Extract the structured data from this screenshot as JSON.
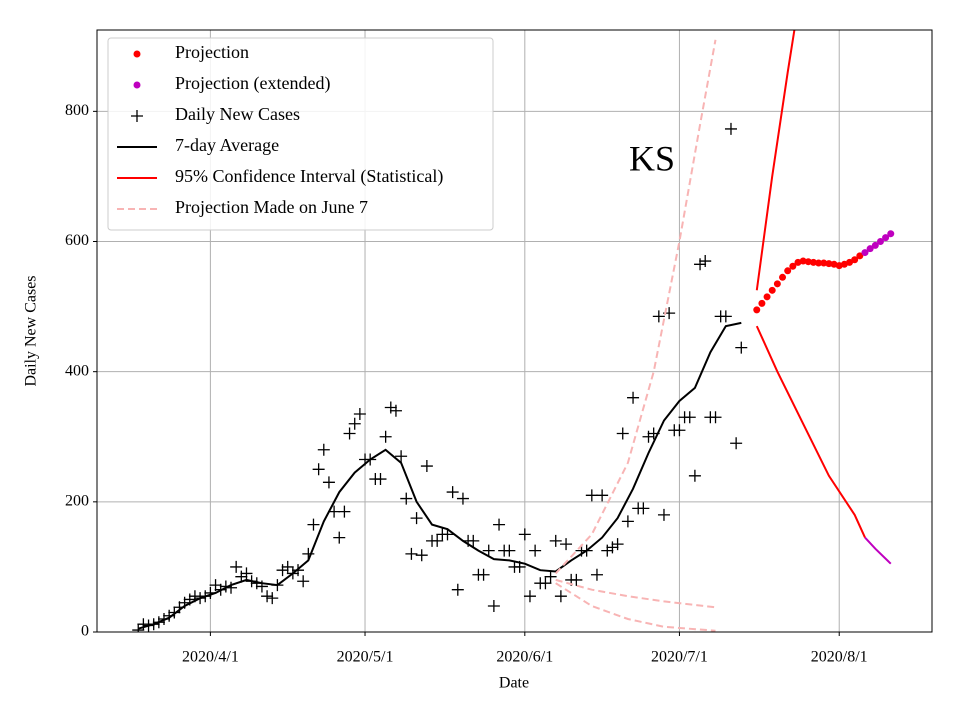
{
  "chart_data": {
    "type": "line",
    "annotation": "KS",
    "xlabel": "Date",
    "ylabel": "Daily New Cases",
    "xlim": [
      "2020/3/10",
      "2020/8/19"
    ],
    "xticks": [
      "2020/4/1",
      "2020/5/1",
      "2020/6/1",
      "2020/7/1",
      "2020/8/1"
    ],
    "ylim": [
      0,
      925
    ],
    "yticks": [
      0,
      200,
      400,
      600,
      800
    ],
    "grid": true,
    "legend": "upper left",
    "series": [
      {
        "name": "Projection",
        "style": "dot",
        "color": "#ff0000",
        "x": [
          "2020/7/16",
          "2020/7/17",
          "2020/7/18",
          "2020/7/19",
          "2020/7/20",
          "2020/7/21",
          "2020/7/22",
          "2020/7/23",
          "2020/7/24",
          "2020/7/25",
          "2020/7/26",
          "2020/7/27",
          "2020/7/28",
          "2020/7/29",
          "2020/7/30",
          "2020/7/31",
          "2020/8/1",
          "2020/8/2",
          "2020/8/3",
          "2020/8/4",
          "2020/8/5"
        ],
        "values": [
          495,
          505,
          515,
          525,
          535,
          545,
          555,
          562,
          568,
          570,
          569,
          568,
          567,
          567,
          566,
          565,
          563,
          565,
          568,
          572,
          578
        ]
      },
      {
        "name": "Projection (extended)",
        "style": "dot",
        "color": "#bf00bf",
        "x": [
          "2020/8/6",
          "2020/8/7",
          "2020/8/8",
          "2020/8/9",
          "2020/8/10",
          "2020/8/11"
        ],
        "values": [
          583,
          589,
          594,
          600,
          606,
          612
        ]
      },
      {
        "name": "Daily New Cases",
        "style": "plus",
        "color": "#000000",
        "x": [
          "2020/3/18",
          "2020/3/19",
          "2020/3/20",
          "2020/3/21",
          "2020/3/22",
          "2020/3/23",
          "2020/3/24",
          "2020/3/25",
          "2020/3/26",
          "2020/3/27",
          "2020/3/28",
          "2020/3/29",
          "2020/3/30",
          "2020/3/31",
          "2020/4/1",
          "2020/4/2",
          "2020/4/3",
          "2020/4/4",
          "2020/4/5",
          "2020/4/6",
          "2020/4/7",
          "2020/4/8",
          "2020/4/9",
          "2020/4/10",
          "2020/4/11",
          "2020/4/12",
          "2020/4/13",
          "2020/4/14",
          "2020/4/15",
          "2020/4/16",
          "2020/4/17",
          "2020/4/18",
          "2020/4/19",
          "2020/4/20",
          "2020/4/21",
          "2020/4/22",
          "2020/4/23",
          "2020/4/24",
          "2020/4/25",
          "2020/4/26",
          "2020/4/27",
          "2020/4/28",
          "2020/4/29",
          "2020/4/30",
          "2020/5/1",
          "2020/5/2",
          "2020/5/3",
          "2020/5/4",
          "2020/5/5",
          "2020/5/6",
          "2020/5/7",
          "2020/5/8",
          "2020/5/9",
          "2020/5/10",
          "2020/5/11",
          "2020/5/12",
          "2020/5/13",
          "2020/5/14",
          "2020/5/15",
          "2020/5/16",
          "2020/5/17",
          "2020/5/18",
          "2020/5/19",
          "2020/5/20",
          "2020/5/21",
          "2020/5/22",
          "2020/5/23",
          "2020/5/24",
          "2020/5/25",
          "2020/5/26",
          "2020/5/27",
          "2020/5/28",
          "2020/5/29",
          "2020/5/30",
          "2020/5/31",
          "2020/6/1",
          "2020/6/2",
          "2020/6/3",
          "2020/6/4",
          "2020/6/5",
          "2020/6/6",
          "2020/6/7",
          "2020/6/8",
          "2020/6/9",
          "2020/6/10",
          "2020/6/11",
          "2020/6/12",
          "2020/6/13",
          "2020/6/14",
          "2020/6/15",
          "2020/6/16",
          "2020/6/17",
          "2020/6/18",
          "2020/6/19",
          "2020/6/20",
          "2020/6/21",
          "2020/6/22",
          "2020/6/23",
          "2020/6/24",
          "2020/6/25",
          "2020/6/26",
          "2020/6/27",
          "2020/6/28",
          "2020/6/29",
          "2020/6/30",
          "2020/7/1",
          "2020/7/2",
          "2020/7/3",
          "2020/7/4",
          "2020/7/5",
          "2020/7/6",
          "2020/7/7",
          "2020/7/8",
          "2020/7/9",
          "2020/7/10",
          "2020/7/11",
          "2020/7/12",
          "2020/7/13"
        ],
        "values": [
          3,
          12,
          10,
          12,
          15,
          20,
          25,
          30,
          38,
          45,
          50,
          55,
          52,
          55,
          60,
          72,
          65,
          70,
          68,
          100,
          85,
          90,
          78,
          75,
          70,
          55,
          52,
          72,
          95,
          100,
          90,
          95,
          78,
          120,
          165,
          250,
          280,
          230,
          185,
          145,
          185,
          305,
          320,
          335,
          265,
          265,
          235,
          235,
          300,
          345,
          340,
          270,
          205,
          120,
          175,
          118,
          255,
          140,
          140,
          150,
          150,
          215,
          65,
          205,
          140,
          140,
          88,
          88,
          125,
          40,
          165,
          125,
          125,
          100,
          100,
          150,
          55,
          125,
          75,
          75,
          85,
          140,
          55,
          135,
          80,
          80,
          125,
          125,
          210,
          88,
          210,
          125,
          130,
          135,
          305,
          170,
          360,
          190,
          190,
          300,
          305,
          485,
          180,
          490,
          310,
          310,
          330,
          330,
          240,
          565,
          570,
          330,
          330,
          485,
          485,
          773,
          290,
          437
        ]
      },
      {
        "name": "7-day Average",
        "style": "line",
        "color": "#000000",
        "x": [
          "2020/3/18",
          "2020/3/21",
          "2020/3/24",
          "2020/3/27",
          "2020/3/30",
          "2020/4/2",
          "2020/4/5",
          "2020/4/8",
          "2020/4/11",
          "2020/4/14",
          "2020/4/17",
          "2020/4/20",
          "2020/4/23",
          "2020/4/26",
          "2020/4/29",
          "2020/5/2",
          "2020/5/5",
          "2020/5/8",
          "2020/5/11",
          "2020/5/14",
          "2020/5/17",
          "2020/5/20",
          "2020/5/23",
          "2020/5/26",
          "2020/5/29",
          "2020/6/1",
          "2020/6/4",
          "2020/6/7",
          "2020/6/10",
          "2020/6/13",
          "2020/6/16",
          "2020/6/19",
          "2020/6/22",
          "2020/6/25",
          "2020/6/28",
          "2020/7/1",
          "2020/7/4",
          "2020/7/7",
          "2020/7/10",
          "2020/7/13"
        ],
        "values": [
          5,
          12,
          22,
          40,
          52,
          60,
          72,
          80,
          75,
          72,
          90,
          110,
          170,
          215,
          245,
          265,
          280,
          260,
          200,
          165,
          158,
          140,
          125,
          112,
          110,
          105,
          95,
          93,
          110,
          125,
          145,
          175,
          220,
          275,
          325,
          355,
          375,
          430,
          470,
          475
        ]
      },
      {
        "name": "95% Confidence Interval (Statistical)",
        "style": "line",
        "color": "#ff0000",
        "x": [
          "2020/7/16",
          "2020/7/19",
          "2020/7/22",
          "2020/7/24"
        ],
        "values": [
          525,
          700,
          860,
          960
        ]
      },
      {
        "name": "Projection Made on June 7",
        "style": "dashed",
        "color": "#f8b4b4",
        "x": [
          "2020/6/7",
          "2020/6/14",
          "2020/6/21",
          "2020/6/26",
          "2020/7/1",
          "2020/7/5",
          "2020/7/8"
        ],
        "values": [
          90,
          150,
          260,
          400,
          600,
          780,
          910
        ]
      },
      {
        "style": "line",
        "color": "#ff0000",
        "x": [
          "2020/7/16",
          "2020/7/20",
          "2020/7/25",
          "2020/7/30",
          "2020/8/4",
          "2020/8/6"
        ],
        "values": [
          470,
          400,
          320,
          240,
          180,
          145
        ]
      },
      {
        "style": "line",
        "color": "#bf00bf",
        "x": [
          "2020/8/6",
          "2020/8/8",
          "2020/8/11"
        ],
        "values": [
          145,
          128,
          105
        ]
      },
      {
        "style": "dashed",
        "color": "#f8b4b4",
        "x": [
          "2020/6/7",
          "2020/6/14",
          "2020/6/21",
          "2020/6/28",
          "2020/7/8"
        ],
        "values": [
          80,
          65,
          55,
          47,
          38
        ]
      },
      {
        "style": "dashed",
        "color": "#f8b4b4",
        "x": [
          "2020/6/7",
          "2020/6/14",
          "2020/6/21",
          "2020/6/28",
          "2020/7/8"
        ],
        "values": [
          75,
          40,
          20,
          8,
          2
        ]
      }
    ]
  }
}
